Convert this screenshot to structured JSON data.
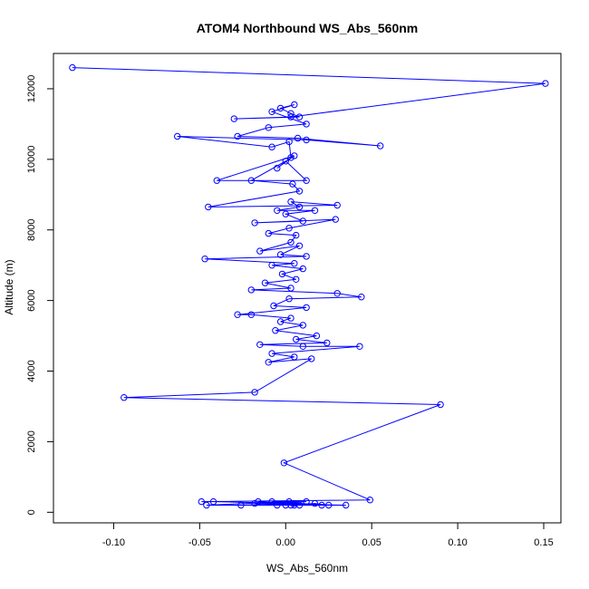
{
  "chart_data": {
    "type": "scatter",
    "title": "ATOM4 Northbound WS_Abs_560nm",
    "xlabel": "WS_Abs_560nm",
    "ylabel": "Altitude (m)",
    "xlim": [
      -0.135,
      0.16
    ],
    "ylim": [
      -300,
      13000
    ],
    "xticks": [
      -0.1,
      -0.05,
      0.0,
      0.05,
      0.1,
      0.15
    ],
    "xtick_labels": [
      "-0.10",
      "-0.05",
      "0.00",
      "0.05",
      "0.10",
      "0.15"
    ],
    "yticks": [
      0,
      2000,
      4000,
      6000,
      8000,
      10000,
      12000
    ],
    "ytick_labels": [
      "0",
      "2000",
      "4000",
      "6000",
      "8000",
      "10000",
      "12000"
    ],
    "grid": false,
    "series": [
      {
        "color": "#0000ff",
        "marker": "open-circle",
        "connected": true,
        "points": [
          [
            -0.124,
            12600
          ],
          [
            0.151,
            12150
          ],
          [
            0.003,
            11200
          ],
          [
            -0.03,
            11150
          ],
          [
            0.008,
            11200
          ],
          [
            0.003,
            11300
          ],
          [
            -0.003,
            11450
          ],
          [
            0.005,
            11550
          ],
          [
            -0.008,
            11350
          ],
          [
            0.012,
            11000
          ],
          [
            -0.01,
            10900
          ],
          [
            -0.028,
            10650
          ],
          [
            0.007,
            10600
          ],
          [
            0.055,
            10380
          ],
          [
            0.012,
            10550
          ],
          [
            -0.063,
            10650
          ],
          [
            -0.008,
            10350
          ],
          [
            0.002,
            10500
          ],
          [
            0.003,
            10050
          ],
          [
            -0.005,
            9750
          ],
          [
            0.005,
            10100
          ],
          [
            -0.04,
            9400
          ],
          [
            0.012,
            9400
          ],
          [
            0.0,
            9950
          ],
          [
            -0.02,
            9400
          ],
          [
            0.004,
            9300
          ],
          [
            0.008,
            9100
          ],
          [
            -0.045,
            8650
          ],
          [
            0.03,
            8700
          ],
          [
            0.003,
            8800
          ],
          [
            0.008,
            8650
          ],
          [
            -0.005,
            8550
          ],
          [
            0.017,
            8550
          ],
          [
            0.0,
            8450
          ],
          [
            0.01,
            8250
          ],
          [
            -0.018,
            8200
          ],
          [
            0.029,
            8300
          ],
          [
            0.002,
            8050
          ],
          [
            -0.01,
            7900
          ],
          [
            0.006,
            7850
          ],
          [
            0.003,
            7650
          ],
          [
            -0.015,
            7400
          ],
          [
            0.008,
            7550
          ],
          [
            -0.003,
            7300
          ],
          [
            0.012,
            7250
          ],
          [
            -0.047,
            7180
          ],
          [
            0.005,
            7050
          ],
          [
            -0.008,
            7000
          ],
          [
            0.01,
            6900
          ],
          [
            -0.002,
            6750
          ],
          [
            0.006,
            6600
          ],
          [
            -0.012,
            6500
          ],
          [
            0.003,
            6350
          ],
          [
            -0.02,
            6300
          ],
          [
            0.03,
            6200
          ],
          [
            0.044,
            6100
          ],
          [
            0.002,
            6050
          ],
          [
            -0.007,
            5850
          ],
          [
            0.012,
            5800
          ],
          [
            -0.028,
            5600
          ],
          [
            -0.02,
            5600
          ],
          [
            0.003,
            5500
          ],
          [
            -0.003,
            5400
          ],
          [
            0.01,
            5300
          ],
          [
            -0.006,
            5150
          ],
          [
            0.018,
            5000
          ],
          [
            0.006,
            4900
          ],
          [
            0.024,
            4800
          ],
          [
            -0.015,
            4750
          ],
          [
            0.01,
            4700
          ],
          [
            0.043,
            4700
          ],
          [
            -0.008,
            4500
          ],
          [
            0.005,
            4400
          ],
          [
            -0.01,
            4250
          ],
          [
            0.015,
            4350
          ],
          [
            -0.018,
            3400
          ],
          [
            -0.094,
            3250
          ],
          [
            0.09,
            3050
          ],
          [
            -0.001,
            1400
          ],
          [
            0.049,
            350
          ],
          [
            -0.049,
            300
          ],
          [
            -0.042,
            300
          ],
          [
            0.005,
            250
          ],
          [
            -0.026,
            200
          ],
          [
            0.035,
            200
          ],
          [
            -0.018,
            250
          ],
          [
            0.012,
            300
          ],
          [
            -0.008,
            300
          ],
          [
            0.025,
            200
          ],
          [
            0.017,
            250
          ],
          [
            -0.005,
            200
          ],
          [
            0.005,
            200
          ],
          [
            -0.016,
            300
          ],
          [
            0.021,
            200
          ],
          [
            0.003,
            200
          ],
          [
            0.008,
            200
          ],
          [
            0.0,
            200
          ],
          [
            -0.046,
            200
          ],
          [
            0.002,
            300
          ]
        ]
      }
    ]
  }
}
